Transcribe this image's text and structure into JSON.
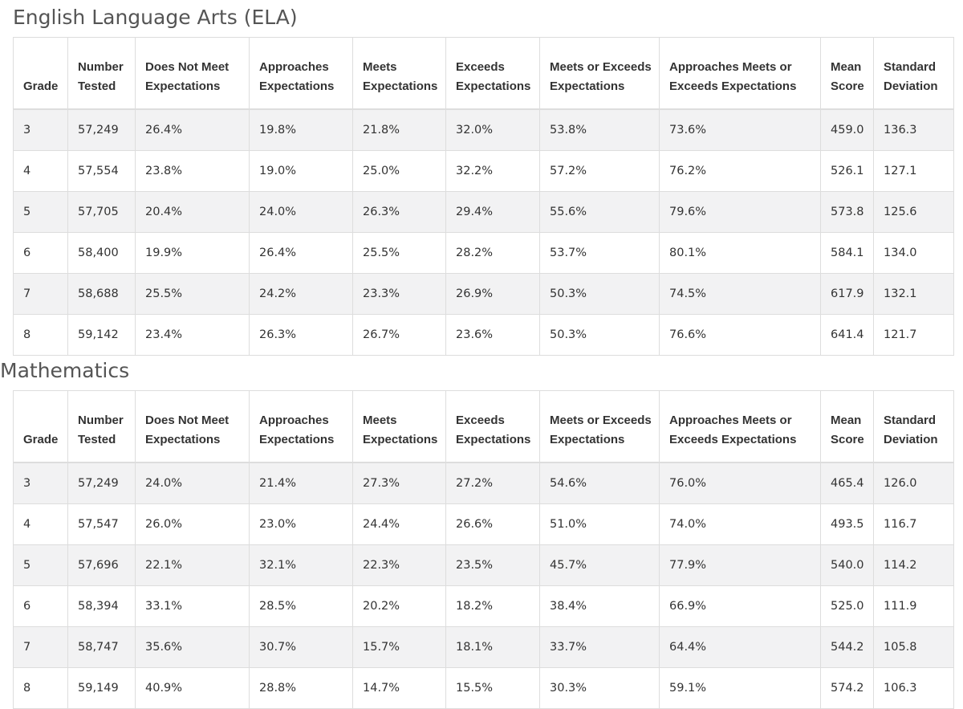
{
  "headers": [
    [
      "Grade"
    ],
    [
      "Number",
      "Tested"
    ],
    [
      "Does Not Meet",
      "Expectations"
    ],
    [
      "Approaches",
      "Expectations"
    ],
    [
      "Meets",
      "Expectations"
    ],
    [
      "Exceeds",
      "Expectations"
    ],
    [
      "Meets or Exceeds",
      "Expectations"
    ],
    [
      "Approaches Meets or",
      "Exceeds Expectations"
    ],
    [
      "Mean",
      "Score"
    ],
    [
      "Standard",
      "Deviation"
    ]
  ],
  "sections": [
    {
      "id": "ela",
      "title": "English Language Arts (ELA)",
      "rows": [
        [
          "3",
          "57,249",
          "26.4%",
          "19.8%",
          "21.8%",
          "32.0%",
          "53.8%",
          "73.6%",
          "459.0",
          "136.3"
        ],
        [
          "4",
          "57,554",
          "23.8%",
          "19.0%",
          "25.0%",
          "32.2%",
          "57.2%",
          "76.2%",
          "526.1",
          "127.1"
        ],
        [
          "5",
          "57,705",
          "20.4%",
          "24.0%",
          "26.3%",
          "29.4%",
          "55.6%",
          "79.6%",
          "573.8",
          "125.6"
        ],
        [
          "6",
          "58,400",
          "19.9%",
          "26.4%",
          "25.5%",
          "28.2%",
          "53.7%",
          "80.1%",
          "584.1",
          "134.0"
        ],
        [
          "7",
          "58,688",
          "25.5%",
          "24.2%",
          "23.3%",
          "26.9%",
          "50.3%",
          "74.5%",
          "617.9",
          "132.1"
        ],
        [
          "8",
          "59,142",
          "23.4%",
          "26.3%",
          "26.7%",
          "23.6%",
          "50.3%",
          "76.6%",
          "641.4",
          "121.7"
        ]
      ]
    },
    {
      "id": "math",
      "title": "Mathematics",
      "rows": [
        [
          "3",
          "57,249",
          "24.0%",
          "21.4%",
          "27.3%",
          "27.2%",
          "54.6%",
          "76.0%",
          "465.4",
          "126.0"
        ],
        [
          "4",
          "57,547",
          "26.0%",
          "23.0%",
          "24.4%",
          "26.6%",
          "51.0%",
          "74.0%",
          "493.5",
          "116.7"
        ],
        [
          "5",
          "57,696",
          "22.1%",
          "32.1%",
          "22.3%",
          "23.5%",
          "45.7%",
          "77.9%",
          "540.0",
          "114.2"
        ],
        [
          "6",
          "58,394",
          "33.1%",
          "28.5%",
          "20.2%",
          "18.2%",
          "38.4%",
          "66.9%",
          "525.0",
          "111.9"
        ],
        [
          "7",
          "58,747",
          "35.6%",
          "30.7%",
          "15.7%",
          "18.1%",
          "33.7%",
          "64.4%",
          "544.2",
          "105.8"
        ],
        [
          "8",
          "59,149",
          "40.9%",
          "28.8%",
          "14.7%",
          "15.5%",
          "30.3%",
          "59.1%",
          "574.2",
          "106.3"
        ]
      ]
    }
  ]
}
